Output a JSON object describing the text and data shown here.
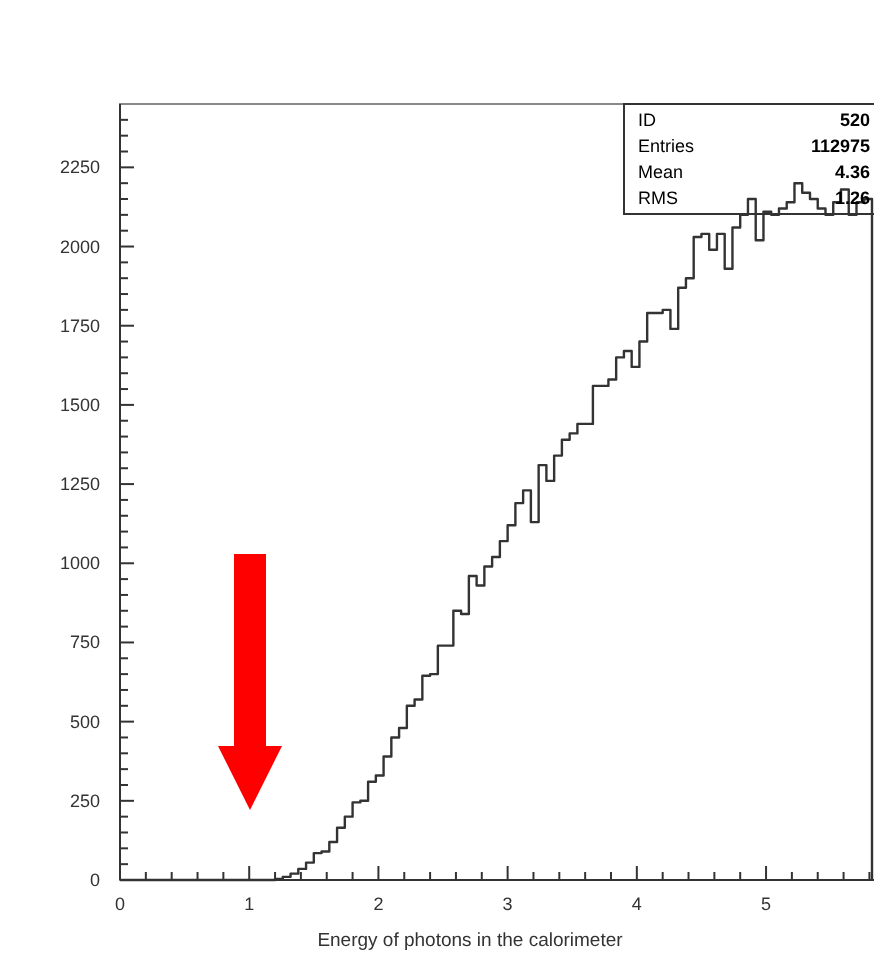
{
  "chart_data": {
    "type": "histogram",
    "xlabel": "Energy of photons in the calorimeter",
    "bins": [
      0,
      0.06,
      0.12,
      0.18,
      0.24,
      0.3,
      0.36,
      0.42,
      0.48,
      0.54,
      0.6,
      0.66,
      0.72,
      0.78,
      0.84,
      0.9,
      0.96,
      1.02,
      1.08,
      1.14,
      1.2,
      1.26,
      1.32,
      1.38,
      1.44,
      1.5,
      1.56,
      1.62,
      1.68,
      1.74,
      1.8,
      1.86,
      1.92,
      1.98,
      2.04,
      2.1,
      2.16,
      2.22,
      2.28,
      2.34,
      2.4,
      2.46,
      2.52,
      2.58,
      2.64,
      2.7,
      2.76,
      2.82,
      2.88,
      2.94,
      3,
      3.06,
      3.12,
      3.18,
      3.24,
      3.3,
      3.36,
      3.42,
      3.48,
      3.54,
      3.6,
      3.66,
      3.72,
      3.78,
      3.84,
      3.9,
      3.96,
      4.02,
      4.08,
      4.14,
      4.2,
      4.26,
      4.32,
      4.38,
      4.44,
      4.5,
      4.56,
      4.62,
      4.68,
      4.74,
      4.8,
      4.86,
      4.92,
      4.98,
      5.04,
      5.1,
      5.16,
      5.22,
      5.28,
      5.34,
      5.4,
      5.46,
      5.52,
      5.58,
      5.64,
      5.7,
      5.76,
      5.82
    ],
    "values": [
      0,
      0,
      0,
      0,
      0,
      0,
      0,
      0,
      0,
      0,
      0,
      0,
      0,
      0,
      0,
      0,
      0,
      0,
      0,
      0,
      3,
      10,
      20,
      35,
      55,
      85,
      90,
      120,
      165,
      200,
      245,
      250,
      310,
      330,
      390,
      450,
      480,
      550,
      570,
      645,
      650,
      740,
      740,
      850,
      840,
      960,
      930,
      990,
      1020,
      1070,
      1120,
      1190,
      1230,
      1130,
      1310,
      1260,
      1340,
      1390,
      1410,
      1440,
      1440,
      1560,
      1560,
      1580,
      1650,
      1670,
      1620,
      1700,
      1790,
      1790,
      1800,
      1740,
      1870,
      1900,
      2030,
      2040,
      1990,
      2040,
      1930,
      2060,
      2100,
      2150,
      2020,
      2110,
      2100,
      2120,
      2140,
      2200,
      2170,
      2150,
      2120,
      2100,
      2140,
      2180,
      2100,
      2140,
      2150
    ],
    "color": "#333333",
    "xlim": [
      0,
      5.82
    ],
    "ylim": [
      0,
      2450
    ],
    "xticks": [
      0,
      {
        "value": 0.2,
        "label": null
      },
      {
        "value": 0.4,
        "label": null
      },
      {
        "value": 0.6,
        "label": null
      },
      {
        "value": 0.8,
        "label": null
      },
      1,
      {
        "value": 1.2,
        "label": null
      },
      {
        "value": 1.4,
        "label": null
      },
      {
        "value": 1.6,
        "label": null
      },
      {
        "value": 1.8,
        "label": null
      },
      2,
      {
        "value": 2.2,
        "label": null
      },
      {
        "value": 2.4,
        "label": null
      },
      {
        "value": 2.6,
        "label": null
      },
      {
        "value": 2.8,
        "label": null
      },
      3,
      {
        "value": 3.2,
        "label": null
      },
      {
        "value": 3.4,
        "label": null
      },
      {
        "value": 3.6,
        "label": null
      },
      {
        "value": 3.8,
        "label": null
      },
      4,
      {
        "value": 4.2,
        "label": null
      },
      {
        "value": 4.4,
        "label": null
      },
      {
        "value": 4.6,
        "label": null
      },
      {
        "value": 4.8,
        "label": null
      },
      5,
      {
        "value": 5.2,
        "label": null
      },
      {
        "value": 5.4,
        "label": null
      },
      {
        "value": 5.6,
        "label": null
      },
      {
        "value": 5.8,
        "label": null
      }
    ],
    "yticks": [
      0,
      {
        "value": 50,
        "label": null
      },
      {
        "value": 100,
        "label": null
      },
      {
        "value": 150,
        "label": null
      },
      {
        "value": 200,
        "label": null
      },
      250,
      {
        "value": 300,
        "label": null
      },
      {
        "value": 350,
        "label": null
      },
      {
        "value": 400,
        "label": null
      },
      {
        "value": 450,
        "label": null
      },
      500,
      {
        "value": 550,
        "label": null
      },
      {
        "value": 600,
        "label": null
      },
      {
        "value": 650,
        "label": null
      },
      {
        "value": 700,
        "label": null
      },
      750,
      {
        "value": 800,
        "label": null
      },
      {
        "value": 850,
        "label": null
      },
      {
        "value": 900,
        "label": null
      },
      {
        "value": 950,
        "label": null
      },
      1000,
      {
        "value": 1050,
        "label": null
      },
      {
        "value": 1100,
        "label": null
      },
      {
        "value": 1150,
        "label": null
      },
      {
        "value": 1200,
        "label": null
      },
      1250,
      {
        "value": 1300,
        "label": null
      },
      {
        "value": 1350,
        "label": null
      },
      {
        "value": 1400,
        "label": null
      },
      {
        "value": 1450,
        "label": null
      },
      1500,
      {
        "value": 1550,
        "label": null
      },
      {
        "value": 1600,
        "label": null
      },
      {
        "value": 1650,
        "label": null
      },
      {
        "value": 1700,
        "label": null
      },
      1750,
      {
        "value": 1800,
        "label": null
      },
      {
        "value": 1850,
        "label": null
      },
      {
        "value": 1900,
        "label": null
      },
      {
        "value": 1950,
        "label": null
      },
      2000,
      {
        "value": 2050,
        "label": null
      },
      {
        "value": 2100,
        "label": null
      },
      {
        "value": 2150,
        "label": null
      },
      {
        "value": 2200,
        "label": null
      },
      2250,
      {
        "value": 2300,
        "label": null
      },
      {
        "value": 2350,
        "label": null
      },
      {
        "value": 2400,
        "label": null
      }
    ],
    "annotations": [
      "ID 520",
      "Entries 112975",
      "Mean 4.36",
      "RMS 1.26"
    ]
  }
}
